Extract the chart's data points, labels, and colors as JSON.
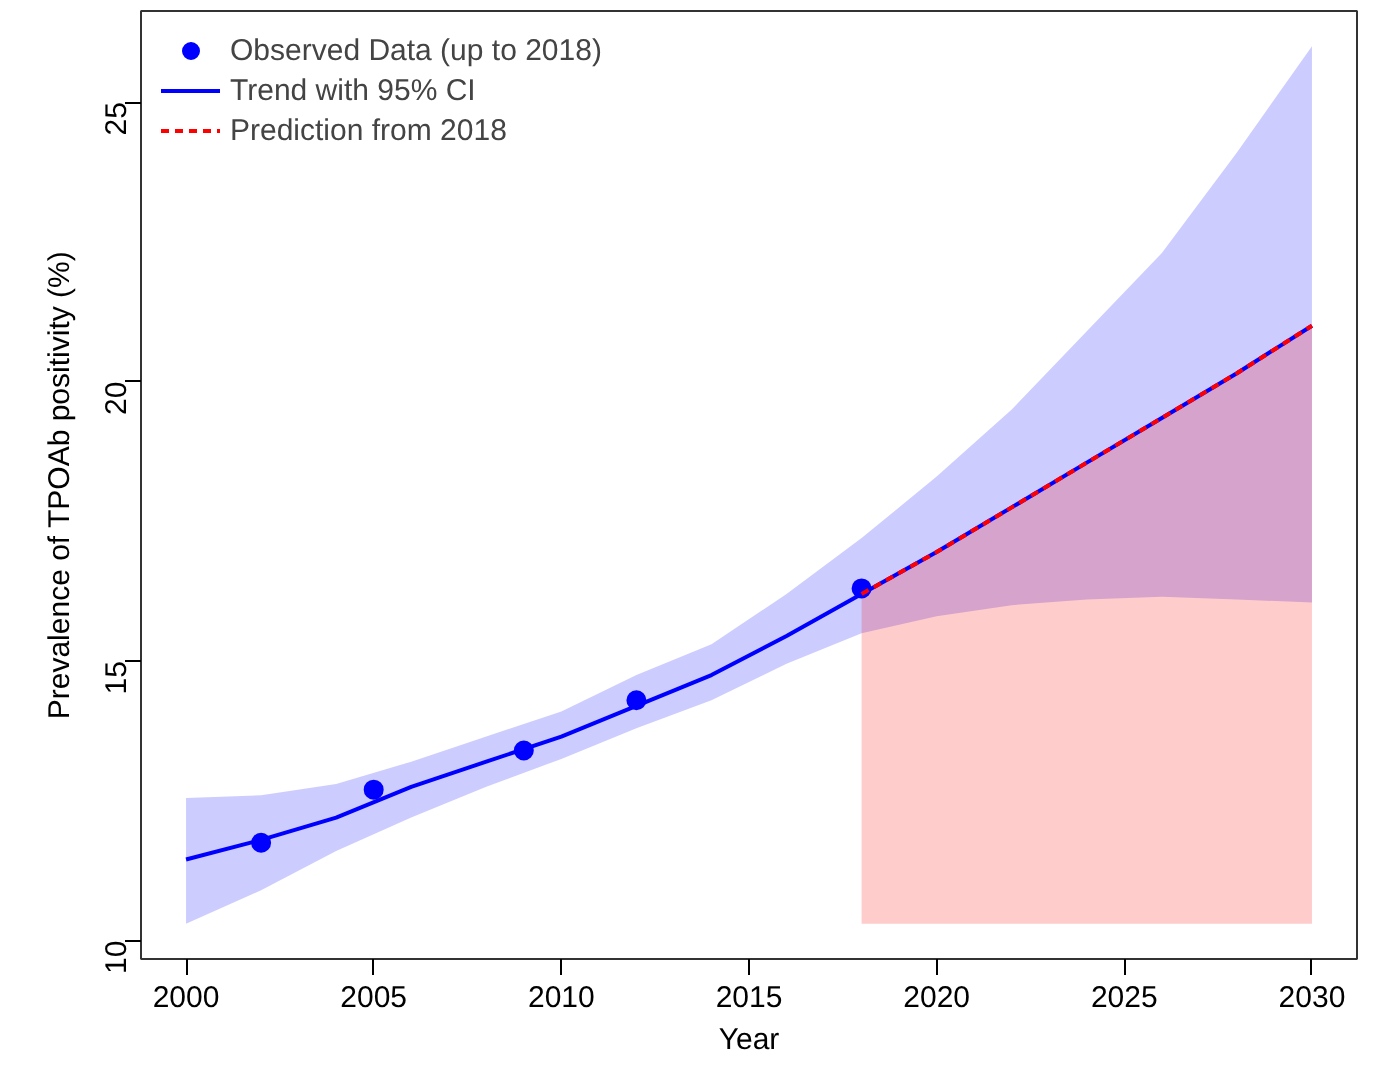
{
  "chart_data": {
    "type": "line",
    "xlabel": "Year",
    "ylabel": "Prevalence of TPOAb positivity (%)",
    "xlim": [
      1998.8,
      2031.2
    ],
    "ylim": [
      9.67,
      26.63
    ],
    "xticks": [
      2000,
      2005,
      2010,
      2015,
      2020,
      2025,
      2030
    ],
    "yticks": [
      10,
      15,
      20,
      25
    ],
    "grid": false,
    "legend": "top left",
    "series": [
      {
        "name": "Observed Data (up to 2018)",
        "type": "scatter",
        "marker": "circle",
        "color": "#0000ff",
        "x": [
          2002,
          2005,
          2009,
          2012,
          2018
        ],
        "values": [
          11.75,
          12.7,
          13.4,
          14.3,
          16.3
        ]
      },
      {
        "name": "Trend with 95% CI",
        "line_style": "solid",
        "color": "#0000ff",
        "x": [
          2000,
          2002,
          2004,
          2006,
          2008,
          2010,
          2012,
          2014,
          2016,
          2018,
          2020,
          2022,
          2024,
          2026,
          2028,
          2030
        ],
        "values": [
          11.45,
          11.8,
          12.2,
          12.75,
          13.2,
          13.65,
          14.2,
          14.75,
          15.45,
          16.2,
          16.95,
          17.75,
          18.55,
          19.35,
          20.15,
          21.0
        ],
        "lower": [
          10.3,
          10.9,
          11.6,
          12.2,
          12.75,
          13.25,
          13.8,
          14.3,
          14.95,
          15.5,
          15.8,
          16.0,
          16.1,
          16.15,
          16.1,
          16.05
        ],
        "upper": [
          12.55,
          12.6,
          12.8,
          13.2,
          13.65,
          14.1,
          14.75,
          15.3,
          16.2,
          17.2,
          18.3,
          19.5,
          20.9,
          22.3,
          24.1,
          26.0
        ]
      },
      {
        "name": "Prediction from 2018",
        "type": "line",
        "line_style": "dashed",
        "color": "#ff0000",
        "x": [
          2018,
          2020,
          2022,
          2024,
          2026,
          2028,
          2030
        ],
        "values": [
          16.2,
          16.95,
          17.75,
          18.55,
          19.35,
          20.15,
          21.0
        ],
        "lower": [
          10.3,
          10.3,
          10.3,
          10.3,
          10.3,
          10.3,
          10.3
        ],
        "upper": [
          16.2,
          16.95,
          17.75,
          18.55,
          19.35,
          20.15,
          21.0
        ]
      }
    ]
  }
}
